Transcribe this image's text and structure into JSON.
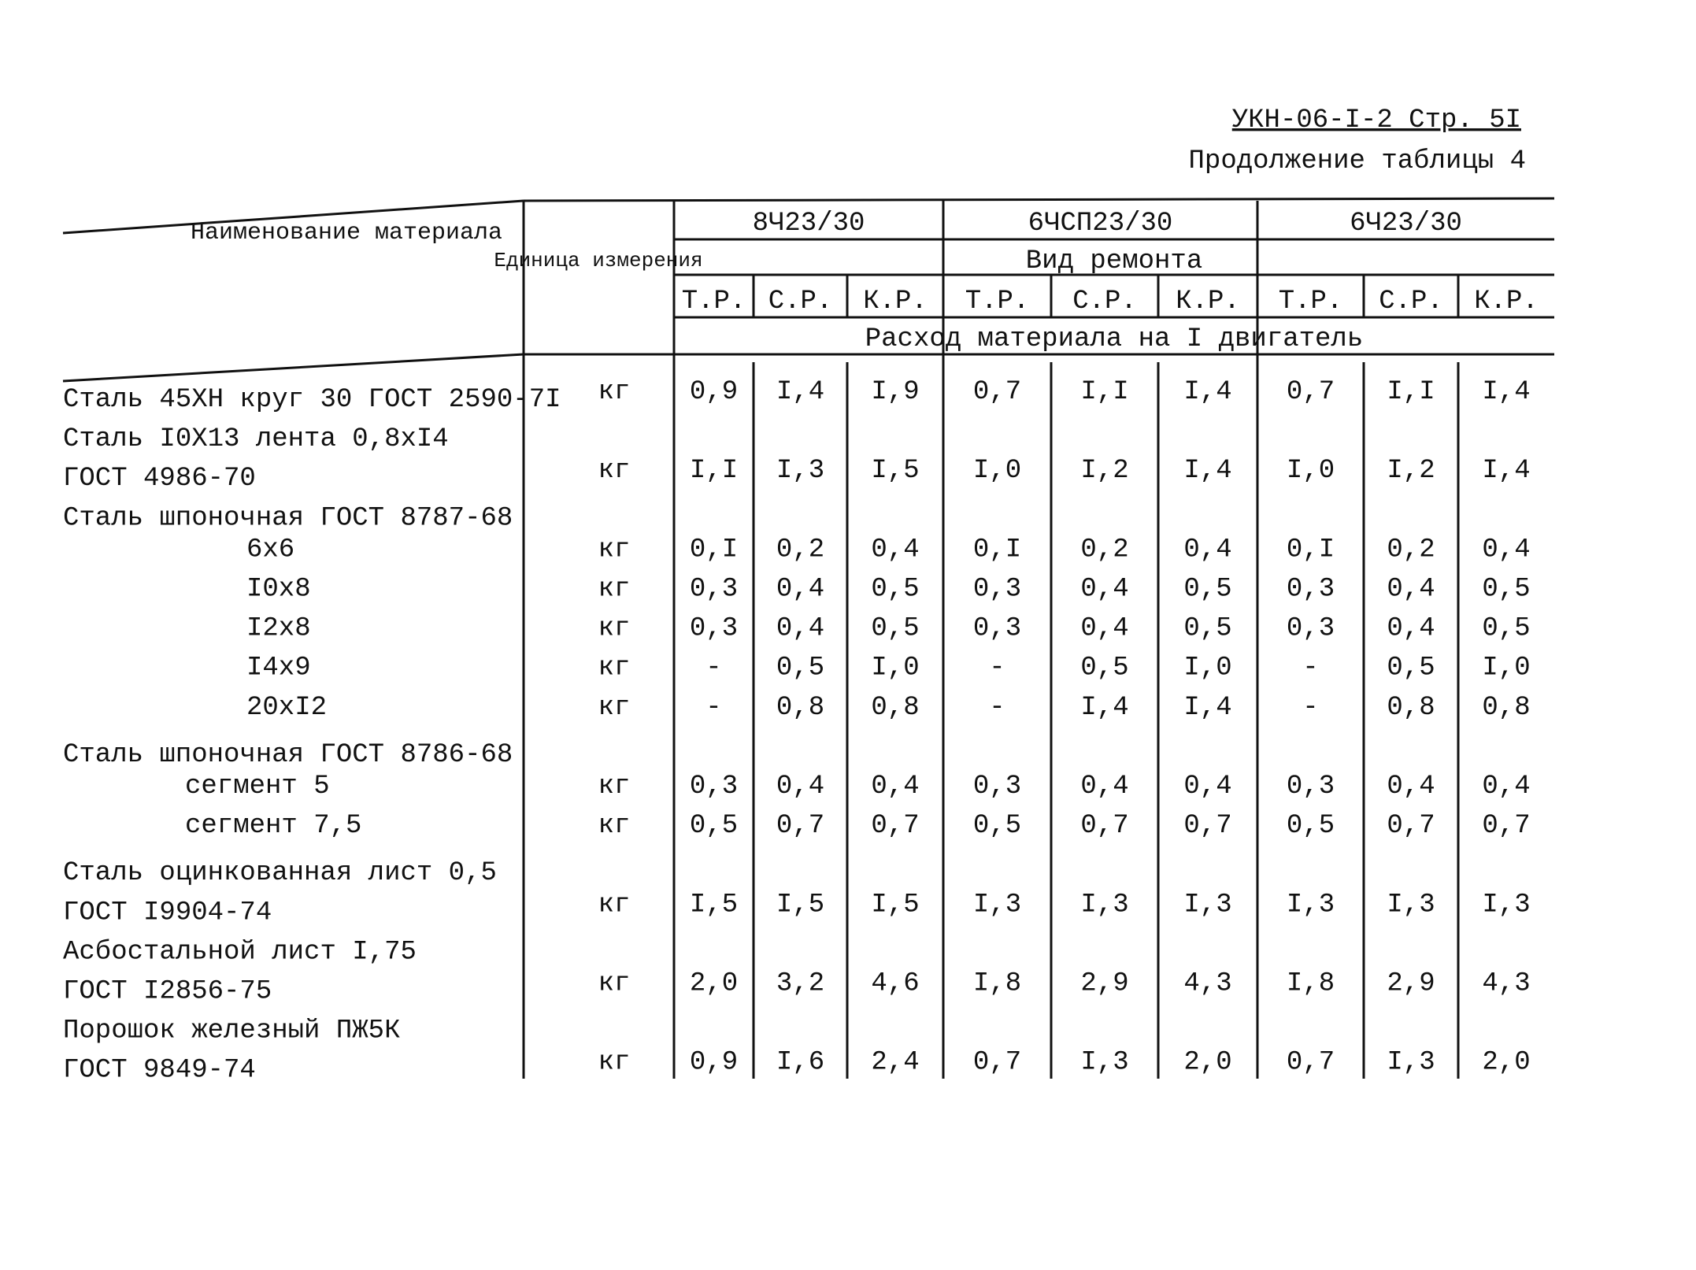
{
  "header": {
    "code": "УКН-06-I-2 Стр. 5I",
    "subtitle": "Продолжение таблицы 4"
  },
  "table": {
    "columns": {
      "name": "Наименование материала",
      "unit": "Единица измерения",
      "engines": [
        "8Ч23/30",
        "6ЧСП23/30",
        "6Ч23/30"
      ],
      "repair": "Вид ремонта",
      "repair_types": [
        "Т.Р.",
        "С.Р.",
        "К.Р.",
        "Т.Р.",
        "С.Р.",
        "К.Р.",
        "Т.Р.",
        "С.Р.",
        "К.Р."
      ],
      "consumption": "Расход материала на I двигатель"
    },
    "rows": [
      {
        "name": [
          "Сталь 45ХН круг 30 ГОСТ 2590-7I"
        ],
        "unit": "кг",
        "values": [
          "0,9",
          "I,4",
          "I,9",
          "0,7",
          "I,I",
          "I,4",
          "0,7",
          "I,I",
          "I,4"
        ]
      },
      {
        "name": [
          "Сталь I0Х13 лента 0,8хI4",
          "ГОСТ 4986-70"
        ],
        "unit": "кг",
        "values": [
          "I,I",
          "I,3",
          "I,5",
          "I,0",
          "I,2",
          "I,4",
          "I,0",
          "I,2",
          "I,4"
        ]
      },
      {
        "name": [
          "Сталь шпоночная ГОСТ 8787-68"
        ],
        "items": [
          {
            "name": "6х6",
            "unit": "кг",
            "values": [
              "0,I",
              "0,2",
              "0,4",
              "0,I",
              "0,2",
              "0,4",
              "0,I",
              "0,2",
              "0,4"
            ]
          },
          {
            "name": "I0х8",
            "unit": "кг",
            "values": [
              "0,3",
              "0,4",
              "0,5",
              "0,3",
              "0,4",
              "0,5",
              "0,3",
              "0,4",
              "0,5"
            ]
          },
          {
            "name": "I2х8",
            "unit": "кг",
            "values": [
              "0,3",
              "0,4",
              "0,5",
              "0,3",
              "0,4",
              "0,5",
              "0,3",
              "0,4",
              "0,5"
            ]
          },
          {
            "name": "I4х9",
            "unit": "кг",
            "values": [
              "-",
              "0,5",
              "I,0",
              "-",
              "0,5",
              "I,0",
              "-",
              "0,5",
              "I,0"
            ]
          },
          {
            "name": "20хI2",
            "unit": "кг",
            "values": [
              "-",
              "0,8",
              "0,8",
              "-",
              "I,4",
              "I,4",
              "-",
              "0,8",
              "0,8"
            ]
          }
        ]
      },
      {
        "name": [
          "Сталь шпоночная ГОСТ 8786-68"
        ],
        "items": [
          {
            "name": "сегмент 5",
            "unit": "кг",
            "values": [
              "0,3",
              "0,4",
              "0,4",
              "0,3",
              "0,4",
              "0,4",
              "0,3",
              "0,4",
              "0,4"
            ]
          },
          {
            "name": "сегмент 7,5",
            "unit": "кг",
            "values": [
              "0,5",
              "0,7",
              "0,7",
              "0,5",
              "0,7",
              "0,7",
              "0,5",
              "0,7",
              "0,7"
            ]
          }
        ]
      },
      {
        "name": [
          "Сталь оцинкованная лист 0,5",
          "ГОСТ I9904-74"
        ],
        "unit": "кг",
        "values": [
          "I,5",
          "I,5",
          "I,5",
          "I,3",
          "I,3",
          "I,3",
          "I,3",
          "I,3",
          "I,3"
        ]
      },
      {
        "name": [
          "Асбостальной лист I,75",
          "ГОСТ I2856-75"
        ],
        "unit": "кг",
        "values": [
          "2,0",
          "3,2",
          "4,6",
          "I,8",
          "2,9",
          "4,3",
          "I,8",
          "2,9",
          "4,3"
        ]
      },
      {
        "name": [
          "Порошок железный ПЖ5К",
          "ГОСТ 9849-74"
        ],
        "unit": "кг",
        "values": [
          "0,9",
          "I,6",
          "2,4",
          "0,7",
          "I,3",
          "2,0",
          "0,7",
          "I,3",
          "2,0"
        ]
      }
    ]
  }
}
